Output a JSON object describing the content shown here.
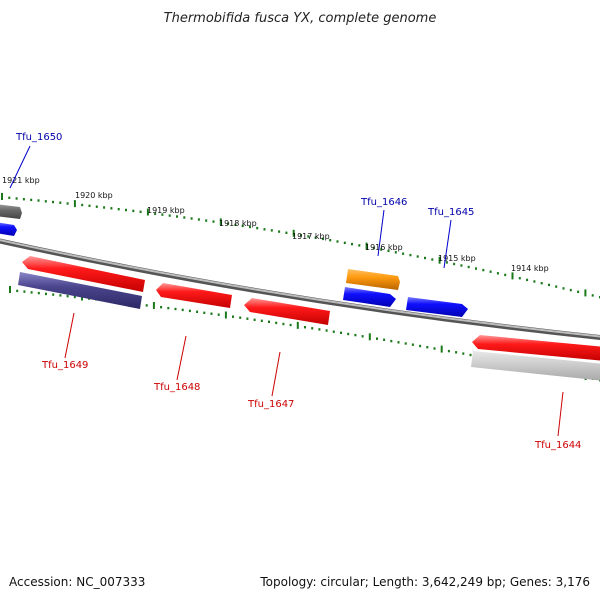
{
  "title": "Thermobifida fusca YX, complete genome",
  "footer": {
    "accession": "Accession: NC_007333",
    "summary": "Topology: circular; Length: 3,642,249 bp; Genes: 3,176"
  },
  "colors": {
    "forward_gene": "#0000ff",
    "reverse_gene": "#ff0000",
    "forward_label": "#0000aa",
    "reverse_label": "#cc0000",
    "tick": "#1a7a1a",
    "backbone": "#7a7a7a"
  },
  "ticks_upper": [
    "1921 kbp",
    "1920 kbp",
    "1919 kbp",
    "1918 kbp",
    "1917 kbp",
    "1916 kbp",
    "1915 kbp",
    "1914 kbp"
  ],
  "genes": [
    {
      "id": "Tfu_1650",
      "strand": "forward",
      "color": "gray"
    },
    {
      "id": "Tfu_1646",
      "strand": "forward",
      "color": "orange"
    },
    {
      "id": "Tfu_1645",
      "strand": "forward",
      "color": "blue"
    },
    {
      "id": "Tfu_1649",
      "strand": "reverse",
      "color": "red"
    },
    {
      "id": "Tfu_1648",
      "strand": "reverse",
      "color": "red"
    },
    {
      "id": "Tfu_1647",
      "strand": "reverse",
      "color": "red"
    },
    {
      "id": "Tfu_1644",
      "strand": "reverse",
      "color": "red"
    }
  ]
}
